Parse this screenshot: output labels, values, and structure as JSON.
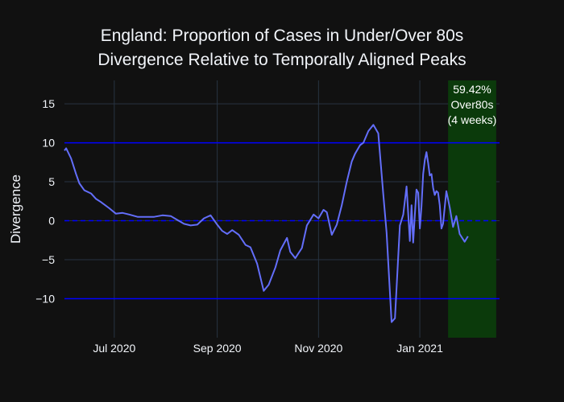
{
  "chart_data": {
    "type": "line",
    "title": [
      "England: Proportion of Cases in Under/Over 80s",
      "Divergence Relative to Temporally Aligned Peaks"
    ],
    "xlabel": "",
    "ylabel": "Divergence",
    "ylim": [
      -15,
      18
    ],
    "xlim": [
      "2020-06-01",
      "2021-02-18"
    ],
    "yticks": [
      -10,
      -5,
      0,
      5,
      10,
      15
    ],
    "ytick_labels": [
      "−10",
      "−5",
      "0",
      "5",
      "10",
      "15"
    ],
    "xticks": [
      "2020-07-01",
      "2020-09-01",
      "2020-11-01",
      "2021-01-01"
    ],
    "xtick_labels": [
      "Jul 2020",
      "Sep 2020",
      "Nov 2020",
      "Jan 2021"
    ],
    "grid": true,
    "reference_lines": [
      10,
      0,
      -10
    ],
    "highlight": {
      "x_start": "2021-01-18",
      "x_end": "2021-02-16",
      "lines": [
        "59.42%",
        "Over80s",
        "(4 weeks)"
      ]
    },
    "colors": {
      "background": "#111111",
      "line": "#636efa",
      "grid": "#283442",
      "reference": "#0000ff",
      "highlight": "#0b3a0b",
      "text": "#f2f5fa"
    },
    "series": [
      {
        "x": [
          "2020-06-01",
          "2020-06-02",
          "2020-06-05",
          "2020-06-08",
          "2020-06-10",
          "2020-06-13",
          "2020-06-17",
          "2020-06-20",
          "2020-06-23",
          "2020-06-28",
          "2020-07-02",
          "2020-07-06",
          "2020-07-10",
          "2020-07-15",
          "2020-07-20",
          "2020-07-25",
          "2020-07-30",
          "2020-08-04",
          "2020-08-08",
          "2020-08-12",
          "2020-08-16",
          "2020-08-20",
          "2020-08-24",
          "2020-08-28",
          "2020-09-01",
          "2020-09-04",
          "2020-09-07",
          "2020-09-10",
          "2020-09-14",
          "2020-09-18",
          "2020-09-21",
          "2020-09-25",
          "2020-09-29",
          "2020-10-02",
          "2020-10-06",
          "2020-10-09",
          "2020-10-13",
          "2020-10-15",
          "2020-10-18",
          "2020-10-22",
          "2020-10-25",
          "2020-10-29",
          "2020-11-01",
          "2020-11-04",
          "2020-11-06",
          "2020-11-09",
          "2020-11-12",
          "2020-11-15",
          "2020-11-18",
          "2020-11-21",
          "2020-11-23",
          "2020-11-26",
          "2020-11-28",
          "2020-12-01",
          "2020-12-04",
          "2020-12-07",
          "2020-12-10",
          "2020-12-12",
          "2020-12-15",
          "2020-12-17",
          "2020-12-20",
          "2020-12-22",
          "2020-12-24",
          "2020-12-26",
          "2020-12-27",
          "2020-12-28",
          "2020-12-29",
          "2020-12-30",
          "2020-12-31",
          "2021-01-01",
          "2021-01-02",
          "2021-01-03",
          "2021-01-04",
          "2021-01-05",
          "2021-01-06",
          "2021-01-07",
          "2021-01-08",
          "2021-01-09",
          "2021-01-10",
          "2021-01-11",
          "2021-01-12",
          "2021-01-13",
          "2021-01-14",
          "2021-01-15",
          "2021-01-16",
          "2021-01-17",
          "2021-01-19",
          "2021-01-21",
          "2021-01-23",
          "2021-01-25",
          "2021-01-28",
          "2021-01-30",
          "2021-02-01",
          "2021-02-03",
          "2021-02-05",
          "2021-02-07",
          "2021-02-09",
          "2021-02-11",
          "2021-02-13",
          "2021-02-16"
        ],
        "y": [
          9.0,
          9.3,
          8.0,
          6.0,
          4.8,
          3.9,
          3.5,
          2.8,
          2.4,
          1.6,
          0.9,
          1.0,
          0.8,
          0.5,
          0.5,
          0.5,
          0.7,
          0.6,
          0.1,
          -0.4,
          -0.6,
          -0.5,
          0.3,
          0.7,
          -0.5,
          -1.3,
          -1.7,
          -1.2,
          -1.8,
          -3.1,
          -3.4,
          -5.5,
          -9.0,
          -8.2,
          -6.0,
          -3.8,
          -2.2,
          -4.0,
          -4.8,
          -3.5,
          -0.6,
          0.8,
          0.3,
          1.4,
          1.1,
          -1.8,
          -0.5,
          2.0,
          5.0,
          7.6,
          8.6,
          9.7,
          10.0,
          11.5,
          12.3,
          11.2,
          3.4,
          -1.5,
          -13.0,
          -12.5,
          -0.6,
          0.8,
          4.4,
          -2.6,
          2.0,
          -2.8,
          0.8,
          4.0,
          3.6,
          -1.0,
          1.8,
          6.0,
          7.8,
          8.8,
          7.4,
          5.8,
          6.0,
          4.2,
          3.3,
          3.8,
          3.6,
          2.0,
          -1.0,
          -0.4,
          1.8,
          3.8,
          1.7,
          -0.8,
          0.6,
          -1.7,
          -2.7,
          -2.0,
          null,
          null,
          null,
          null,
          null,
          null,
          null,
          null
        ]
      }
    ]
  }
}
